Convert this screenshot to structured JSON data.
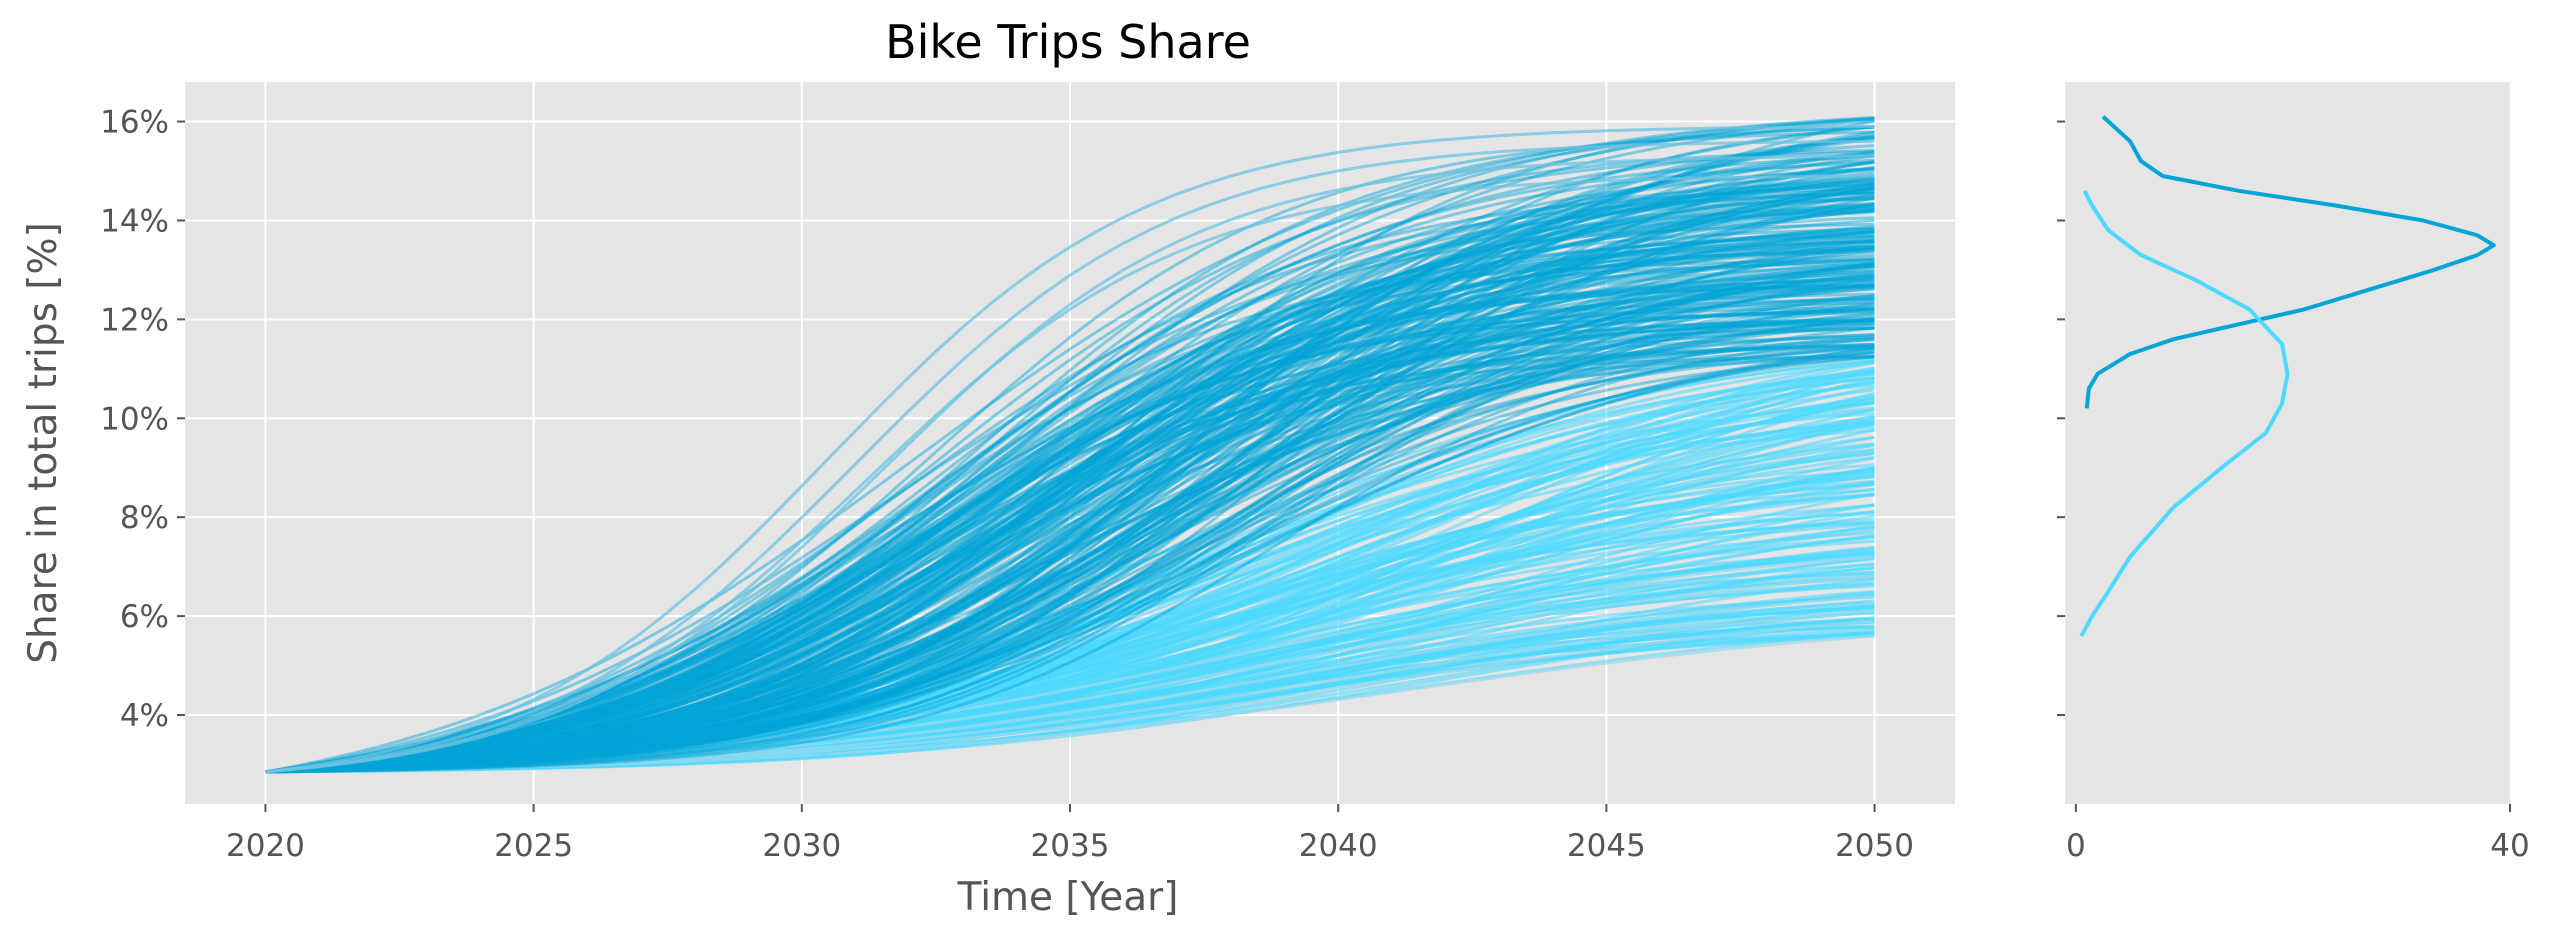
{
  "chart_data": [
    {
      "type": "line",
      "title": "Bike Trips Share",
      "xlabel": "Time [Year]",
      "ylabel": "Share in total trips [%]",
      "xlim": [
        2018.5,
        2051.5
      ],
      "ylim": [
        2.2,
        16.8
      ],
      "x_ticks": [
        2020,
        2025,
        2030,
        2035,
        2040,
        2045,
        2050
      ],
      "x_tick_labels": [
        "2020",
        "2025",
        "2030",
        "2035",
        "2040",
        "2045",
        "2050"
      ],
      "y_ticks": [
        4,
        6,
        8,
        10,
        12,
        14,
        16
      ],
      "y_tick_labels": [
        "4%",
        "6%",
        "8%",
        "10%",
        "12%",
        "14%",
        "16%"
      ],
      "grid": true,
      "start_value": 2.85,
      "start_year": 2020,
      "end_year": 2050,
      "series": [
        {
          "color": "#00A5D6",
          "final_values": [
            16.1,
            15.8,
            15.7,
            15.5,
            15.3,
            15.1,
            14.9,
            14.8,
            14.6,
            14.4,
            14.2,
            14.0,
            13.8,
            13.6,
            13.4,
            13.2,
            13.0,
            12.8,
            12.6,
            12.4,
            12.2,
            12.0,
            11.8,
            11.6,
            11.4,
            11.2
          ],
          "midpoint_years": [
            2031.5,
            2032.0,
            2032.5,
            2033.0,
            2033.5,
            2034.0,
            2034.5,
            2035.0,
            2035.5,
            2036.0,
            2036.5,
            2037.0,
            2037.5,
            2038.0,
            2038.5,
            2039.0
          ]
        },
        {
          "color": "#4DD8FF",
          "final_values": [
            11.2,
            10.8,
            10.4,
            10.0,
            9.6,
            9.2,
            8.8,
            8.4,
            8.0,
            7.6,
            7.2,
            6.8,
            6.4,
            6.1,
            5.9,
            5.6
          ],
          "midpoint_years": [
            2036.0,
            2037.0,
            2038.0,
            2039.0,
            2040.0,
            2041.0,
            2042.0
          ]
        }
      ]
    },
    {
      "type": "line",
      "title": "",
      "xlim": [
        -1,
        40
      ],
      "ylim": [
        2.2,
        16.8
      ],
      "x_ticks": [
        0,
        40
      ],
      "x_tick_labels": [
        "0",
        "40"
      ],
      "grid": false,
      "series": [
        {
          "color": "#00A5D6",
          "points": [
            [
              1.0,
              10.2
            ],
            [
              1.2,
              10.6
            ],
            [
              2.0,
              10.9
            ],
            [
              5.0,
              11.3
            ],
            [
              9.0,
              11.6
            ],
            [
              15.0,
              11.9
            ],
            [
              21.0,
              12.2
            ],
            [
              27.0,
              12.6
            ],
            [
              33.0,
              13.0
            ],
            [
              37.0,
              13.3
            ],
            [
              38.5,
              13.5
            ],
            [
              37.0,
              13.7
            ],
            [
              32.0,
              14.0
            ],
            [
              24.0,
              14.3
            ],
            [
              15.0,
              14.6
            ],
            [
              8.0,
              14.9
            ],
            [
              6.0,
              15.2
            ],
            [
              5.0,
              15.6
            ],
            [
              2.5,
              16.1
            ]
          ]
        },
        {
          "color": "#4DD8FF",
          "points": [
            [
              0.5,
              5.6
            ],
            [
              1.5,
              6.0
            ],
            [
              3.0,
              6.5
            ],
            [
              5.0,
              7.2
            ],
            [
              9.0,
              8.2
            ],
            [
              14.0,
              9.1
            ],
            [
              17.5,
              9.7
            ],
            [
              19.0,
              10.3
            ],
            [
              19.5,
              10.9
            ],
            [
              19.0,
              11.5
            ],
            [
              16.0,
              12.2
            ],
            [
              11.0,
              12.8
            ],
            [
              6.0,
              13.3
            ],
            [
              3.0,
              13.8
            ],
            [
              1.5,
              14.3
            ],
            [
              0.8,
              14.6
            ]
          ]
        }
      ]
    }
  ]
}
